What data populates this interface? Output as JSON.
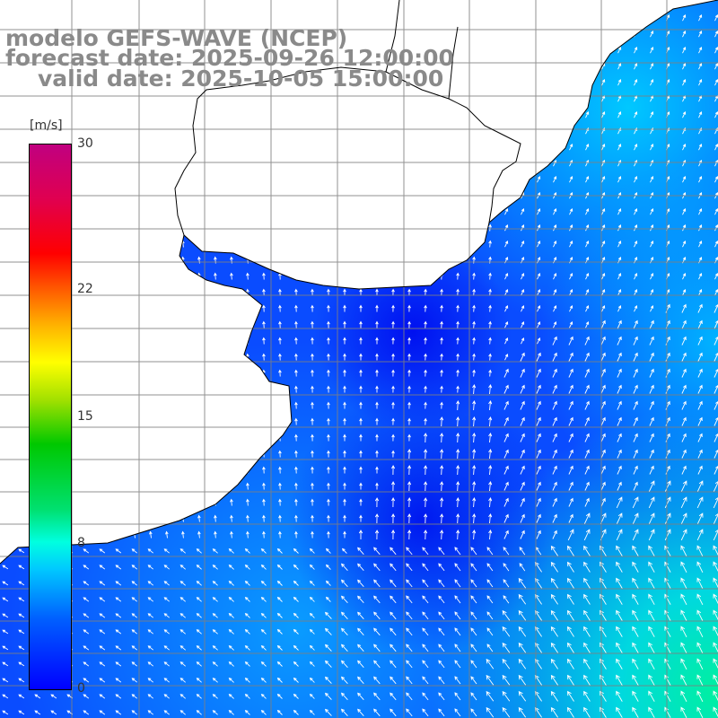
{
  "title": {
    "line1": "modelo GEFS-WAVE (NCEP)",
    "line2": "forecast date: 2025-09-26 12:00:00",
    "line3": "valid date: 2025-10-05 15:00:00"
  },
  "colorbar": {
    "unit": "[m/s]",
    "ticks": [
      "30",
      "22",
      "15",
      "8",
      "0"
    ],
    "tick_values": [
      30,
      22,
      15,
      8,
      0
    ],
    "min": 0,
    "max": 30
  },
  "colors": {
    "land": "#ffffff",
    "coast": "#000000",
    "grid": "#808080",
    "arrow": "#ffffff",
    "title_text": "#8a8a8a",
    "ocean_low": "#0014ff",
    "ocean_mid": "#0096ff",
    "ocean_high": "#00e0c8"
  },
  "map": {
    "variable": "wind speed and direction",
    "grid_lines": true,
    "arrows": true
  }
}
